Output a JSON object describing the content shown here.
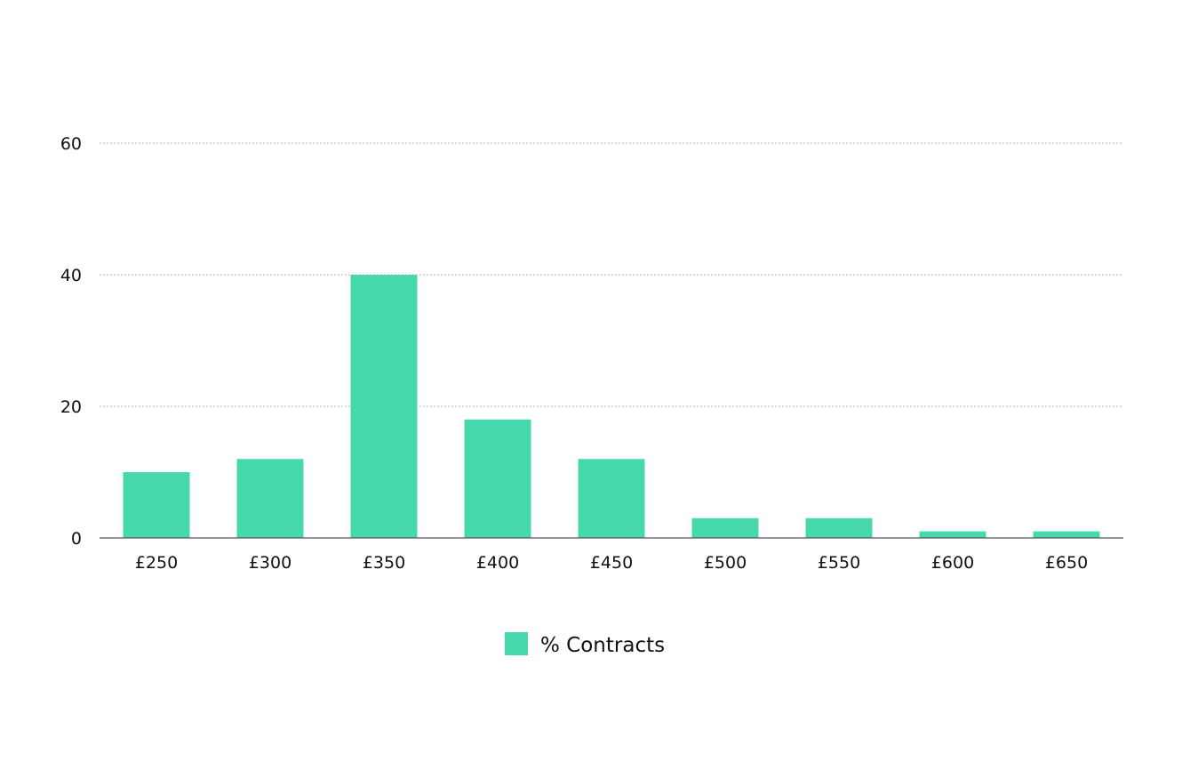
{
  "chart_data": {
    "type": "bar",
    "categories": [
      "£250",
      "£300",
      "£350",
      "£400",
      "£450",
      "£500",
      "£550",
      "£600",
      "£650"
    ],
    "series": [
      {
        "name": "% Contracts",
        "values": [
          10,
          12,
          40,
          18,
          12,
          3,
          3,
          1,
          1
        ],
        "color": "#48D8AE"
      }
    ],
    "ylim": [
      0,
      60
    ],
    "yticks": [
      0,
      20,
      40,
      60
    ],
    "grid": true,
    "legend": "bottom-center"
  },
  "legend": {
    "label": "% Contracts"
  },
  "colors": {
    "bar": "#48D8AE",
    "grid": "#b5b5b5",
    "axis": "#555555",
    "text": "#111111"
  }
}
